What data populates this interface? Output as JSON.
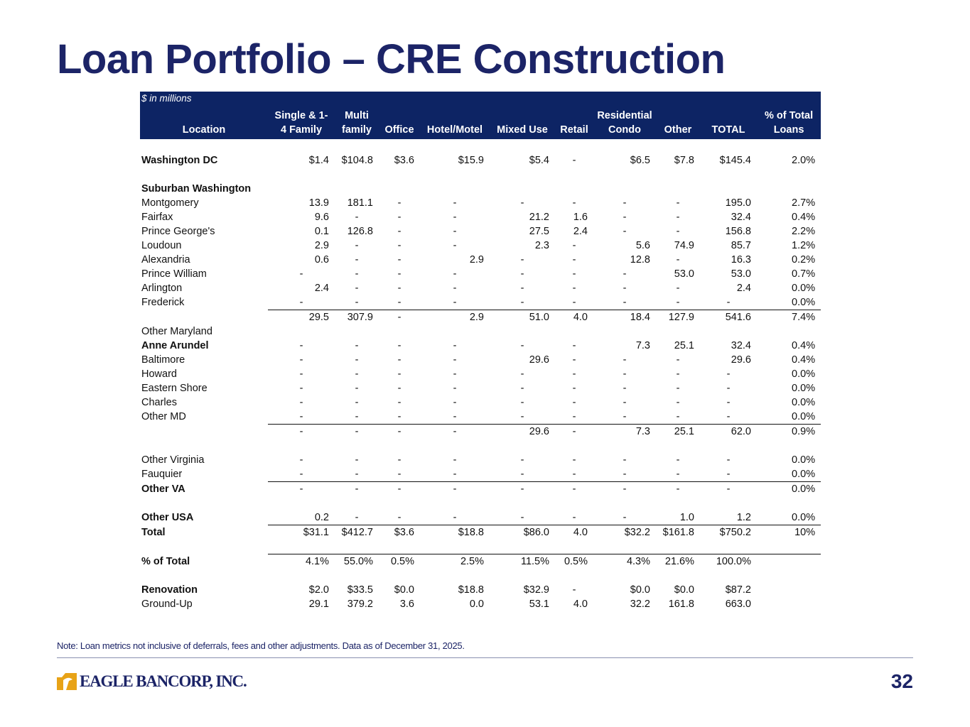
{
  "title": "Loan Portfolio – CRE Construction",
  "units_note": "$ in millions",
  "columns": [
    {
      "line1": "",
      "line2": "Location"
    },
    {
      "line1": "Single & 1-",
      "line2": "4 Family"
    },
    {
      "line1": "Multi",
      "line2": "family"
    },
    {
      "line1": "",
      "line2": "Office"
    },
    {
      "line1": "",
      "line2": "Hotel/Motel"
    },
    {
      "line1": "",
      "line2": "Mixed Use"
    },
    {
      "line1": "",
      "line2": "Retail"
    },
    {
      "line1": "Residential",
      "line2": "Condo"
    },
    {
      "line1": "",
      "line2": "Other"
    },
    {
      "line1": "",
      "line2": "TOTAL"
    },
    {
      "line1": "% of Total",
      "line2": "Loans"
    }
  ],
  "rows": [
    {
      "type": "spacer"
    },
    {
      "type": "data",
      "bold": true,
      "label": "Washington DC",
      "values": [
        "$1.4",
        "$104.8",
        "$3.6",
        "$15.9",
        "$5.4",
        "-",
        "$6.5",
        "$7.8",
        "$145.4",
        "2.0%"
      ]
    },
    {
      "type": "spacer"
    },
    {
      "type": "heading",
      "bold": true,
      "label": "Suburban Washington"
    },
    {
      "type": "data",
      "label": "Montgomery",
      "values": [
        "13.9",
        "181.1",
        "-",
        "-",
        "-",
        "-",
        "-",
        "-",
        "195.0",
        "2.7%"
      ]
    },
    {
      "type": "data",
      "label": "Fairfax",
      "values": [
        "9.6",
        "-",
        "-",
        "-",
        "21.2",
        "1.6",
        "-",
        "-",
        "32.4",
        "0.4%"
      ]
    },
    {
      "type": "data",
      "label": "Prince George's",
      "values": [
        "0.1",
        "126.8",
        "-",
        "-",
        "27.5",
        "2.4",
        "-",
        "-",
        "156.8",
        "2.2%"
      ]
    },
    {
      "type": "data",
      "label": "Loudoun",
      "values": [
        "2.9",
        "-",
        "-",
        "-",
        "2.3",
        "-",
        "5.6",
        "74.9",
        "85.7",
        "1.2%"
      ]
    },
    {
      "type": "data",
      "label": "Alexandria",
      "values": [
        "0.6",
        "-",
        "-",
        "2.9",
        "-",
        "-",
        "12.8",
        "-",
        "16.3",
        "0.2%"
      ]
    },
    {
      "type": "data",
      "label": "Prince William",
      "values": [
        "-",
        "-",
        "-",
        "-",
        "-",
        "-",
        "-",
        "53.0",
        "53.0",
        "0.7%"
      ]
    },
    {
      "type": "data",
      "label": "Arlington",
      "values": [
        "2.4",
        "-",
        "-",
        "-",
        "-",
        "-",
        "-",
        "-",
        "2.4",
        "0.0%"
      ]
    },
    {
      "type": "data",
      "label": "Frederick",
      "values": [
        "-",
        "-",
        "-",
        "-",
        "-",
        "-",
        "-",
        "-",
        "-",
        "0.0%"
      ]
    },
    {
      "type": "data",
      "rule": true,
      "label": "",
      "values": [
        "29.5",
        "307.9",
        "-",
        "2.9",
        "51.0",
        "4.0",
        "18.4",
        "127.9",
        "541.6",
        "7.4%"
      ]
    },
    {
      "type": "heading",
      "label": "Other Maryland"
    },
    {
      "type": "data",
      "bold": true,
      "label": "Anne Arundel",
      "values": [
        "-",
        "-",
        "-",
        "-",
        "-",
        "-",
        "7.3",
        "25.1",
        "32.4",
        "0.4%"
      ]
    },
    {
      "type": "data",
      "label": "Baltimore",
      "values": [
        "-",
        "-",
        "-",
        "-",
        "29.6",
        "-",
        "-",
        "-",
        "29.6",
        "0.4%"
      ]
    },
    {
      "type": "data",
      "label": "Howard",
      "values": [
        "-",
        "-",
        "-",
        "-",
        "-",
        "-",
        "-",
        "-",
        "-",
        "0.0%"
      ]
    },
    {
      "type": "data",
      "label": "Eastern Shore",
      "values": [
        "-",
        "-",
        "-",
        "-",
        "-",
        "-",
        "-",
        "-",
        "-",
        "0.0%"
      ]
    },
    {
      "type": "data",
      "label": "Charles",
      "values": [
        "-",
        "-",
        "-",
        "-",
        "-",
        "-",
        "-",
        "-",
        "-",
        "0.0%"
      ]
    },
    {
      "type": "data",
      "label": "Other MD",
      "values": [
        "-",
        "-",
        "-",
        "-",
        "-",
        "-",
        "-",
        "-",
        "-",
        "0.0%"
      ]
    },
    {
      "type": "data",
      "rule": true,
      "label": "",
      "values": [
        "-",
        "-",
        "-",
        "-",
        "29.6",
        "-",
        "7.3",
        "25.1",
        "62.0",
        "0.9%"
      ]
    },
    {
      "type": "spacer"
    },
    {
      "type": "data",
      "label": "Other Virginia",
      "values": [
        "-",
        "-",
        "-",
        "-",
        "-",
        "-",
        "-",
        "-",
        "-",
        "0.0%"
      ]
    },
    {
      "type": "data",
      "label": "Fauquier",
      "values": [
        "-",
        "-",
        "-",
        "-",
        "-",
        "-",
        "-",
        "-",
        "-",
        "0.0%"
      ]
    },
    {
      "type": "data",
      "bold": true,
      "rule": true,
      "label": "Other VA",
      "values": [
        "-",
        "-",
        "-",
        "-",
        "-",
        "-",
        "-",
        "-",
        "-",
        "0.0%"
      ]
    },
    {
      "type": "spacer"
    },
    {
      "type": "data",
      "bold": true,
      "label": "Other USA",
      "values": [
        "0.2",
        "-",
        "-",
        "-",
        "-",
        "-",
        "-",
        "1.0",
        "1.2",
        "0.0%"
      ]
    },
    {
      "type": "data",
      "bold": true,
      "rule": true,
      "label": "Total",
      "values": [
        "$31.1",
        "$412.7",
        "$3.6",
        "$18.8",
        "$86.0",
        "4.0",
        "$32.2",
        "$161.8",
        "$750.2",
        "10%"
      ]
    },
    {
      "type": "spacer"
    },
    {
      "type": "data",
      "bold": true,
      "rule": true,
      "label": "% of Total",
      "values": [
        "4.1%",
        "55.0%",
        "0.5%",
        "2.5%",
        "11.5%",
        "0.5%",
        "4.3%",
        "21.6%",
        "100.0%",
        ""
      ]
    },
    {
      "type": "spacer"
    },
    {
      "type": "data",
      "bold": true,
      "label": "Renovation",
      "values": [
        "$2.0",
        "$33.5",
        "$0.0",
        "$18.8",
        "$32.9",
        "-",
        "$0.0",
        "$0.0",
        "$87.2",
        ""
      ]
    },
    {
      "type": "data",
      "label": "Ground-Up",
      "values": [
        "29.1",
        "379.2",
        "3.6",
        "0.0",
        "53.1",
        "4.0",
        "32.2",
        "161.8",
        "663.0",
        ""
      ]
    }
  ],
  "footnote": "Note: Loan metrics not inclusive of deferrals, fees and other adjustments. Data as of December 31, 2025.",
  "logo_text": "EAGLE BANCORP, INC.",
  "logo_icon": "eagle-icon",
  "page_number": "32",
  "colors": {
    "brand_navy": "#1c2467",
    "header_fill": "#0d2464",
    "logo_gold": "#e8a317"
  }
}
